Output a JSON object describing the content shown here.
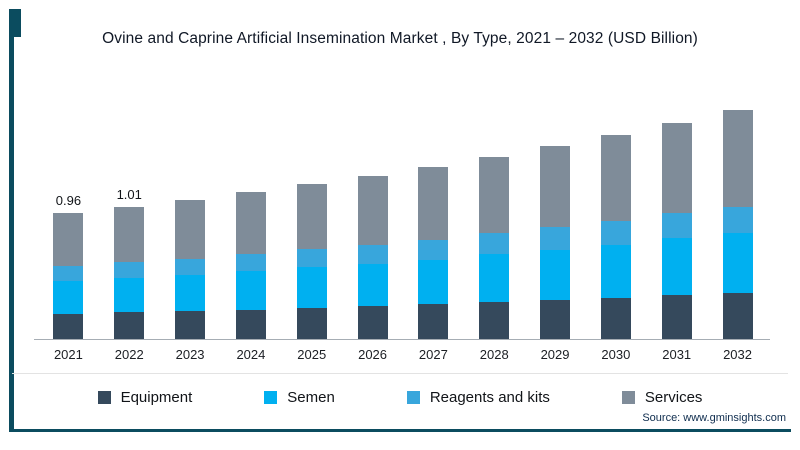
{
  "title": "Ovine and Caprine Artificial Insemination Market , By Type, 2021 – 2032 (USD Billion)",
  "source": "Source: www.gminsights.com",
  "colors": {
    "accent": "#0b4c5f",
    "equipment": "#35495c",
    "semen": "#00b0f0",
    "reagents_and_kits": "#38a6dc",
    "services": "#7f8c99",
    "axis_line": "#a6adb4"
  },
  "chart_data": {
    "type": "bar",
    "stacked": true,
    "title": "Ovine and Caprine Artificial Insemination Market , By Type, 2021 – 2032 (USD Billion)",
    "unit": "USD Billion",
    "categories": [
      "2021",
      "2022",
      "2023",
      "2024",
      "2025",
      "2026",
      "2027",
      "2028",
      "2029",
      "2030",
      "2031",
      "2032"
    ],
    "series": [
      {
        "name": "Equipment",
        "color": "#35495c",
        "values": [
          0.2,
          0.21,
          0.22,
          0.23,
          0.245,
          0.26,
          0.27,
          0.29,
          0.305,
          0.32,
          0.34,
          0.36
        ]
      },
      {
        "name": "Semen",
        "color": "#00b0f0",
        "values": [
          0.25,
          0.26,
          0.275,
          0.29,
          0.31,
          0.32,
          0.34,
          0.36,
          0.38,
          0.4,
          0.43,
          0.45
        ]
      },
      {
        "name": "Reagents and kits",
        "color": "#38a6dc",
        "values": [
          0.11,
          0.12,
          0.12,
          0.13,
          0.135,
          0.14,
          0.15,
          0.16,
          0.17,
          0.18,
          0.19,
          0.2
        ]
      },
      {
        "name": "Services",
        "color": "#7f8c99",
        "values": [
          0.4,
          0.42,
          0.445,
          0.47,
          0.49,
          0.52,
          0.55,
          0.58,
          0.615,
          0.65,
          0.68,
          0.73
        ]
      }
    ],
    "totals": [
      0.96,
      1.01,
      1.06,
      1.12,
      1.18,
      1.24,
      1.31,
      1.39,
      1.47,
      1.55,
      1.64,
      1.74
    ],
    "data_labels": [
      "0.96",
      "1.01",
      null,
      null,
      null,
      null,
      null,
      null,
      null,
      null,
      null,
      null
    ],
    "ylim": [
      0,
      1.85
    ],
    "grid": false,
    "legend_position": "bottom"
  }
}
